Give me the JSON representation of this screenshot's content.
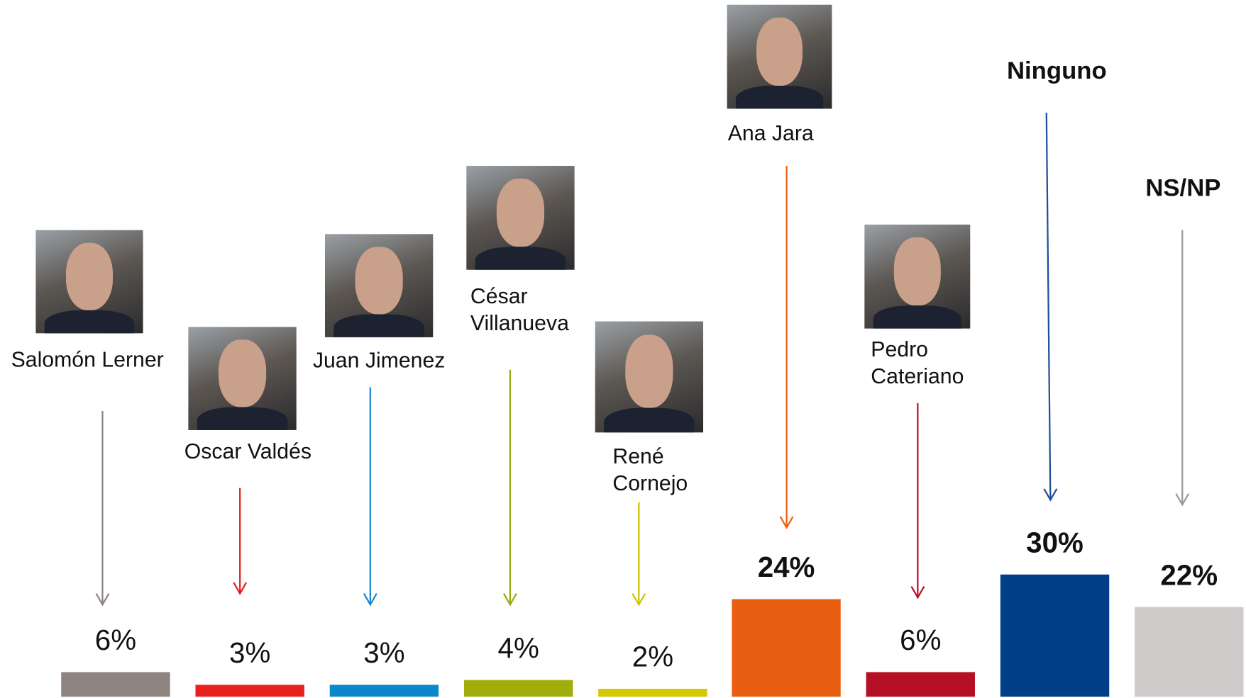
{
  "chart_data": {
    "type": "bar",
    "categories": [
      "Salomón Lerner",
      "Oscar Valdés",
      "Juan Jimenez",
      "César\nVillanueva",
      "René\nCornejo",
      "Ana Jara",
      "Pedro\nCateriano",
      "Ninguno",
      "NS/NP"
    ],
    "values": [
      6,
      3,
      3,
      4,
      2,
      24,
      6,
      30,
      22
    ],
    "value_labels": [
      "6%",
      "3%",
      "3%",
      "4%",
      "2%",
      "24%",
      "6%",
      "30%",
      "22%"
    ],
    "colors": [
      "#8f8380",
      "#e8211f",
      "#0b87cc",
      "#a0ad0b",
      "#d4c800",
      "#ea5e12",
      "#b51024",
      "#003f88",
      "#cfcbca"
    ]
  }
}
